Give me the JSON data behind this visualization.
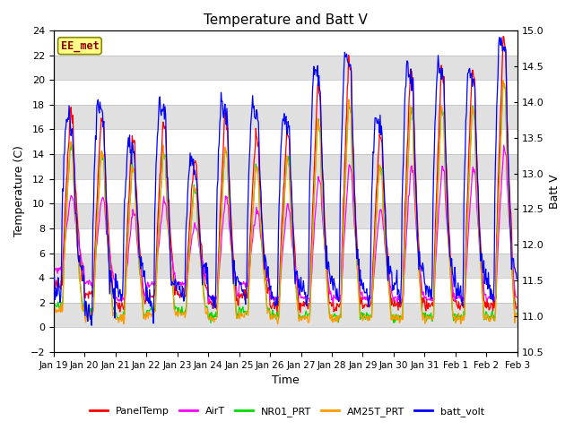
{
  "title": "Temperature and Batt V",
  "xlabel": "Time",
  "ylabel_left": "Temperature (C)",
  "ylabel_right": "Batt V",
  "ylim_left": [
    -2,
    24
  ],
  "ylim_right": [
    10.5,
    15.0
  ],
  "yticks_left": [
    -2,
    0,
    2,
    4,
    6,
    8,
    10,
    12,
    14,
    16,
    18,
    20,
    22,
    24
  ],
  "yticks_right": [
    10.5,
    11.0,
    11.5,
    12.0,
    12.5,
    13.0,
    13.5,
    14.0,
    14.5,
    15.0
  ],
  "xtick_labels": [
    "Jan 19",
    "Jan 20",
    "Jan 21",
    "Jan 22",
    "Jan 23",
    "Jan 24",
    "Jan 25",
    "Jan 26",
    "Jan 27",
    "Jan 28",
    "Jan 29",
    "Jan 30",
    "Jan 31",
    "Feb 1",
    "Feb 2",
    "Feb 3"
  ],
  "watermark": "EE_met",
  "legend": [
    {
      "label": "PanelTemp",
      "color": "#ff0000"
    },
    {
      "label": "AirT",
      "color": "#ff00ff"
    },
    {
      "label": "NR01_PRT",
      "color": "#00dd00"
    },
    {
      "label": "AM25T_PRT",
      "color": "#ff9900"
    },
    {
      "label": "batt_volt",
      "color": "#0000ff"
    }
  ],
  "bg_color": "#e8e8e8",
  "title_fontsize": 11
}
